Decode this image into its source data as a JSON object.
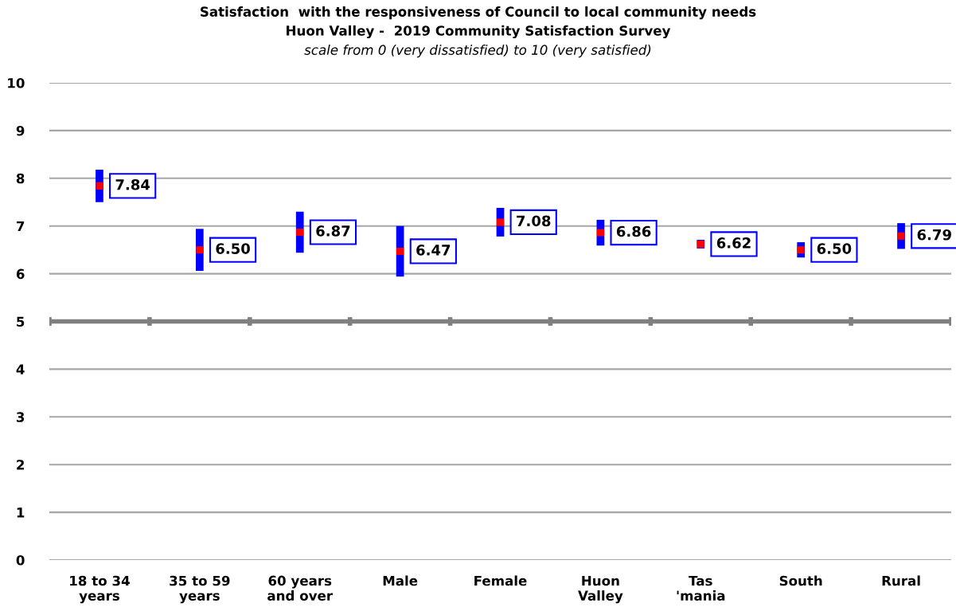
{
  "chart_data": {
    "type": "scatter",
    "title": "Satisfaction  with the responsiveness of Council to local community needs\nHuon Valley -  2019 Community Satisfaction Survey",
    "subtitle": "scale from 0 (very dissatisfied) to 10 (very satisfied)",
    "categories": [
      "18 to 34\nyears",
      "35 to 59\nyears",
      "60 years\nand over",
      "Male",
      "Female",
      "Huon\nValley",
      "Tas\n'mania",
      "South",
      "Rural"
    ],
    "series": [
      {
        "color": "#ff0000",
        "values": [
          7.84,
          6.5,
          6.87,
          6.47,
          7.08,
          6.86,
          6.62,
          6.5,
          6.79
        ],
        "errors": [
          0.34,
          0.44,
          0.43,
          0.53,
          0.3,
          0.27,
          0.09,
          0.16,
          0.27
        ],
        "value_labels": [
          "7.84",
          "6.50",
          "6.87",
          "6.47",
          "7.08",
          "6.86",
          "6.62",
          "6.50",
          "6.79"
        ]
      }
    ],
    "marker": "square",
    "ylim": [
      0,
      10
    ],
    "yticks": [
      0,
      1,
      2,
      3,
      4,
      5,
      6,
      7,
      8,
      9,
      10
    ],
    "grid": "y",
    "ref_lines": [
      {
        "axis": "y",
        "value": 5,
        "label": null,
        "color": "#808080"
      }
    ]
  }
}
